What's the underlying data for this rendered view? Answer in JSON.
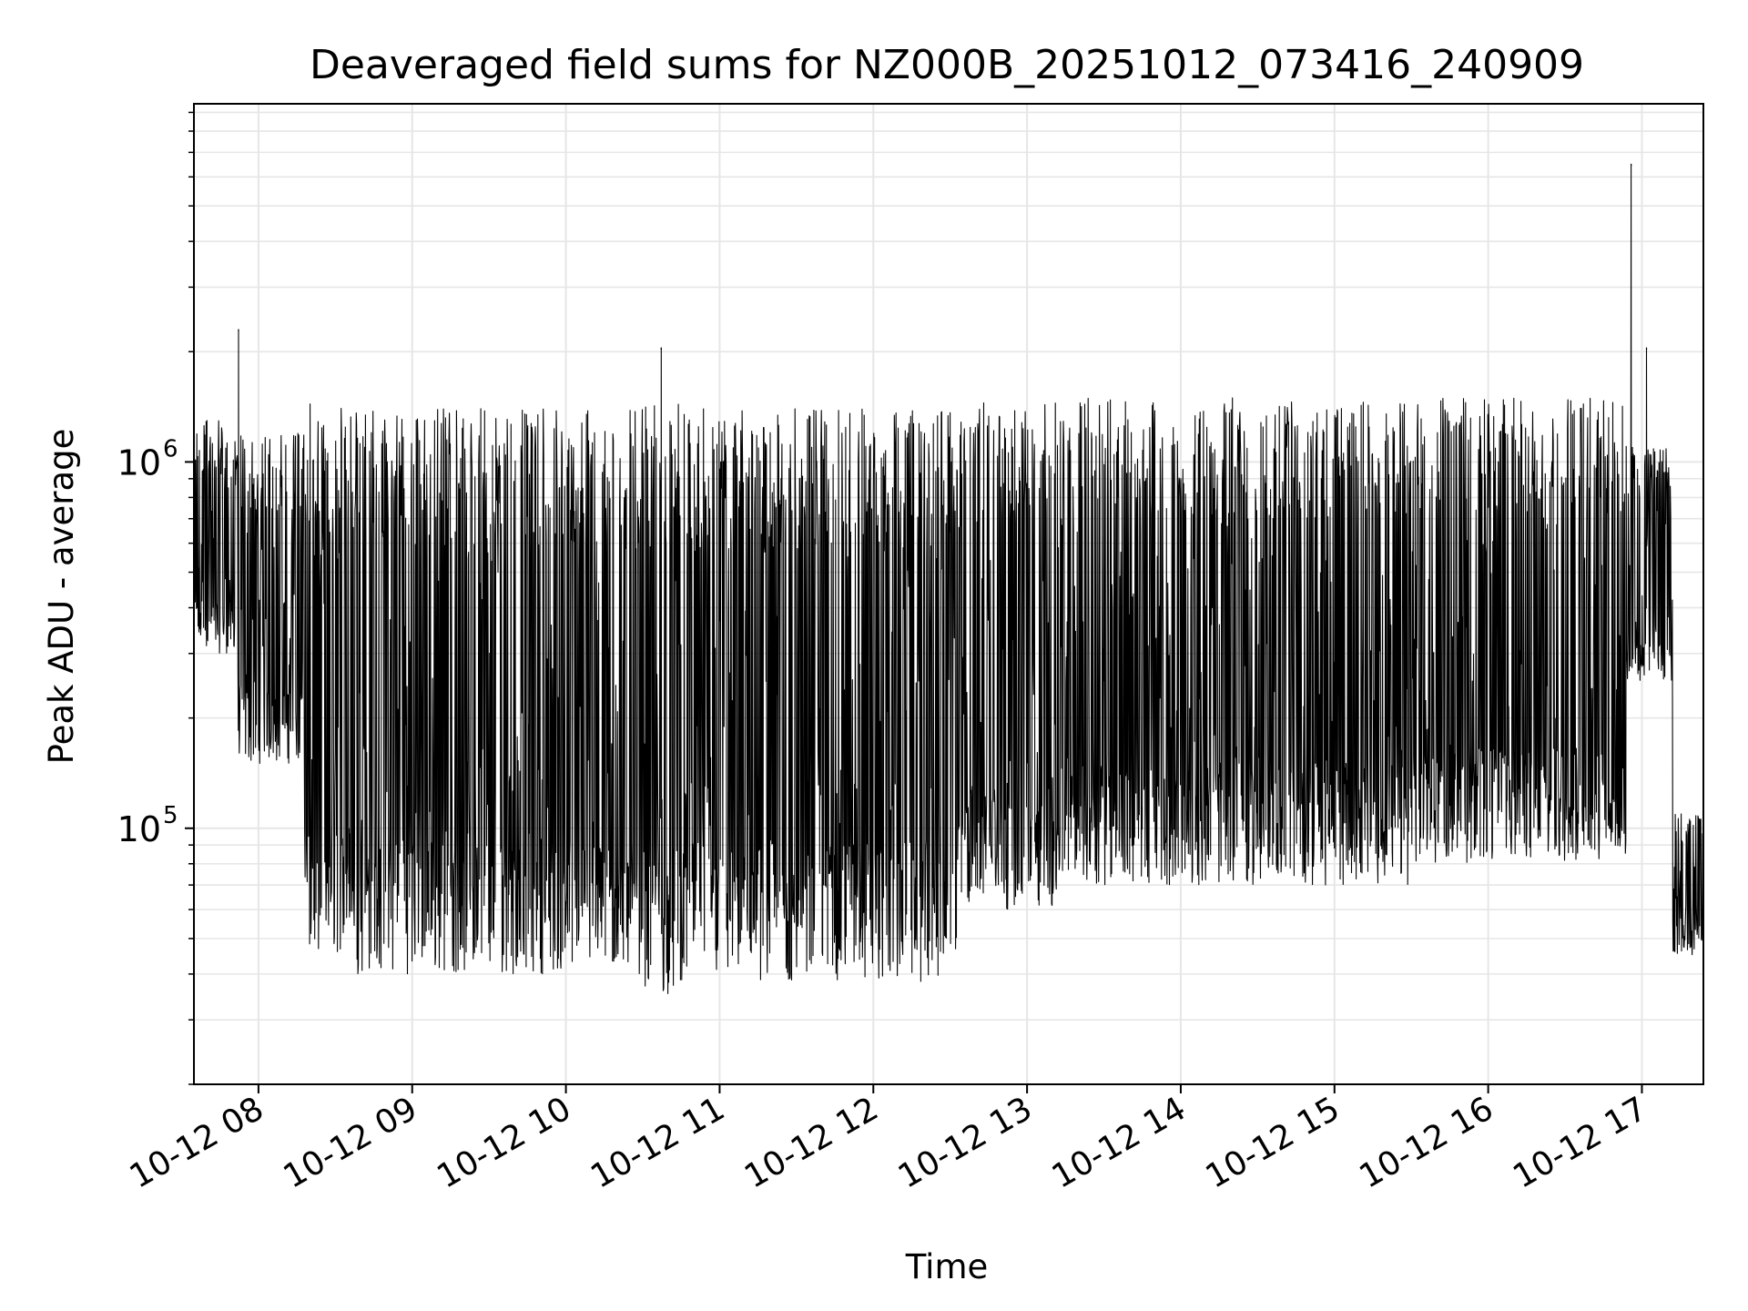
{
  "chart_data": {
    "type": "line",
    "title": "Deaveraged field sums for NZ000B_20251012_073416_240909",
    "xlabel": "Time",
    "ylabel": "Peak ADU - average",
    "yscale": "log",
    "xlim": [
      7.58,
      17.4
    ],
    "ylim": [
      20000,
      9500000
    ],
    "grid": true,
    "line_color": "#000000",
    "grid_color": "#e6e6e6",
    "x_ticks": [
      {
        "value": 8,
        "label": "10-12 08"
      },
      {
        "value": 9,
        "label": "10-12 09"
      },
      {
        "value": 10,
        "label": "10-12 10"
      },
      {
        "value": 11,
        "label": "10-12 11"
      },
      {
        "value": 12,
        "label": "10-12 12"
      },
      {
        "value": 13,
        "label": "10-12 13"
      },
      {
        "value": 14,
        "label": "10-12 14"
      },
      {
        "value": 15,
        "label": "10-12 15"
      },
      {
        "value": 16,
        "label": "10-12 16"
      },
      {
        "value": 17,
        "label": "10-12 17"
      }
    ],
    "y_ticks": [
      {
        "value": 100000,
        "base": "10",
        "exp": "5"
      },
      {
        "value": 1000000,
        "base": "10",
        "exp": "6"
      }
    ],
    "series": [
      {
        "name": "Peak ADU - average",
        "description": "dense rapidly oscillating signal; envelope segments with approximate low and high values",
        "envelope": [
          {
            "t_start": 7.58,
            "t_end": 7.85,
            "low": 300000,
            "high": 1300000
          },
          {
            "t_start": 7.85,
            "t_end": 8.3,
            "low": 150000,
            "high": 1200000
          },
          {
            "t_start": 8.3,
            "t_end": 8.6,
            "low": 45000,
            "high": 1450000
          },
          {
            "t_start": 8.6,
            "t_end": 10.5,
            "low": 40000,
            "high": 1400000
          },
          {
            "t_start": 10.5,
            "t_end": 10.75,
            "low": 35000,
            "high": 1500000
          },
          {
            "t_start": 10.75,
            "t_end": 12.55,
            "low": 38000,
            "high": 1400000
          },
          {
            "t_start": 12.55,
            "t_end": 13.2,
            "low": 60000,
            "high": 1450000
          },
          {
            "t_start": 13.2,
            "t_end": 15.5,
            "low": 70000,
            "high": 1500000
          },
          {
            "t_start": 15.5,
            "t_end": 16.9,
            "low": 80000,
            "high": 1500000
          },
          {
            "t_start": 16.9,
            "t_end": 17.2,
            "low": 250000,
            "high": 1100000
          },
          {
            "t_start": 17.2,
            "t_end": 17.4,
            "low": 45000,
            "high": 110000
          }
        ],
        "notable_peaks": [
          {
            "t": 7.87,
            "value": 2300000
          },
          {
            "t": 10.62,
            "value": 2050000
          },
          {
            "t": 16.93,
            "value": 6500000
          },
          {
            "t": 17.03,
            "value": 2050000
          }
        ]
      }
    ]
  }
}
